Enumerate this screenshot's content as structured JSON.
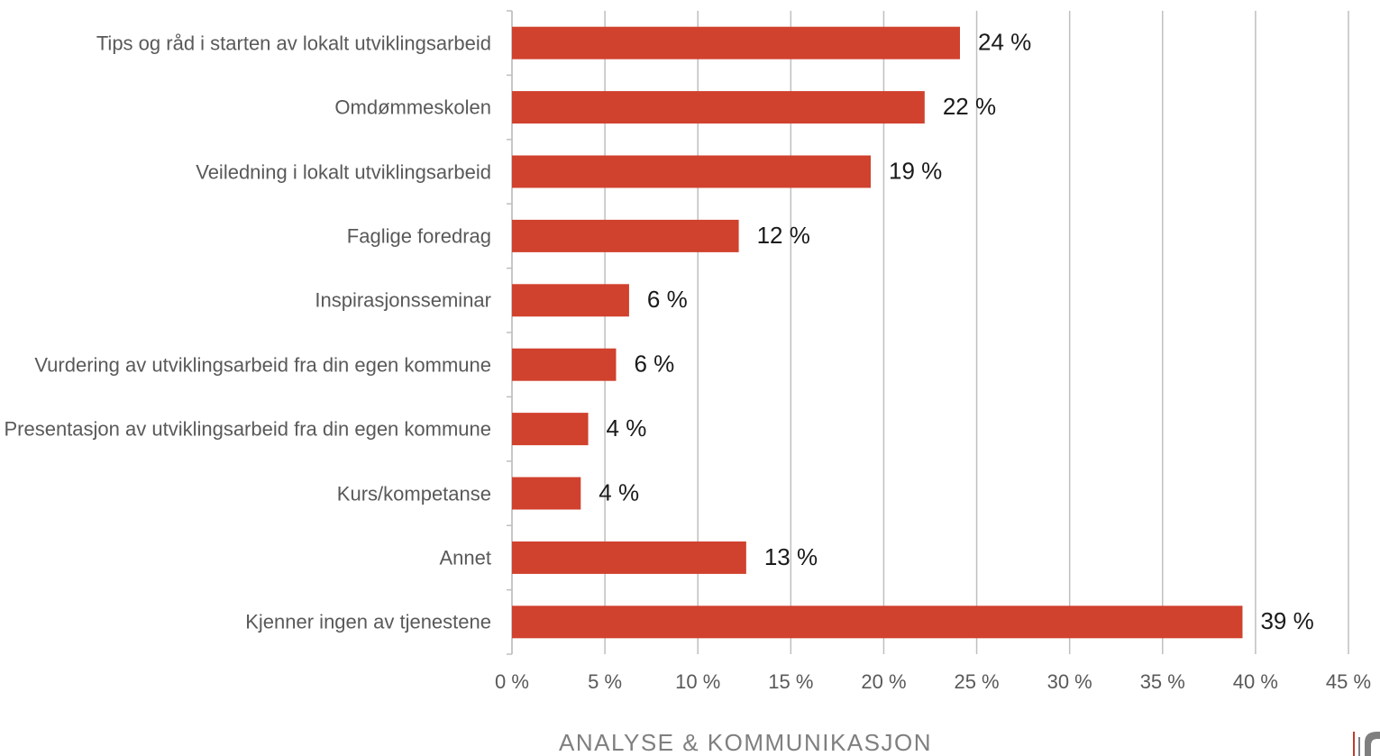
{
  "chart_data": {
    "type": "barh",
    "categories": [
      "Tips og råd i starten av lokalt utviklingsarbeid",
      "Omdømmeskolen",
      "Veiledning i lokalt utviklingsarbeid",
      "Faglige foredrag",
      "Inspirasjonsseminar",
      "Vurdering av utviklingsarbeid fra din egen kommune",
      "Presentasjon av utviklingsarbeid fra din egen kommune",
      "Kurs/kompetanse",
      "Annet",
      "Kjenner ingen av tjenestene"
    ],
    "values": [
      24.1,
      22.2,
      19.3,
      12.2,
      6.3,
      5.6,
      4.1,
      3.7,
      12.6,
      39.3
    ],
    "value_labels": [
      "24 %",
      "22 %",
      "19 %",
      "12 %",
      "6 %",
      "6 %",
      "4 %",
      "4 %",
      "13 %",
      "39 %"
    ],
    "color": "#d0412e",
    "xlim": [
      0,
      45
    ],
    "xticks": [
      {
        "value": 0,
        "label": "0 %"
      },
      {
        "value": 5,
        "label": "5 %"
      },
      {
        "value": 10,
        "label": "10 %"
      },
      {
        "value": 15,
        "label": "15 %"
      },
      {
        "value": 20,
        "label": "20 %"
      },
      {
        "value": 25,
        "label": "25 %"
      },
      {
        "value": 30,
        "label": "30 %"
      },
      {
        "value": 35,
        "label": "35 %"
      },
      {
        "value": 40,
        "label": "40 %"
      },
      {
        "value": 45,
        "label": "45 %"
      }
    ],
    "grid": true,
    "footer": "ANALYSE & KOMMUNIKASJON"
  }
}
